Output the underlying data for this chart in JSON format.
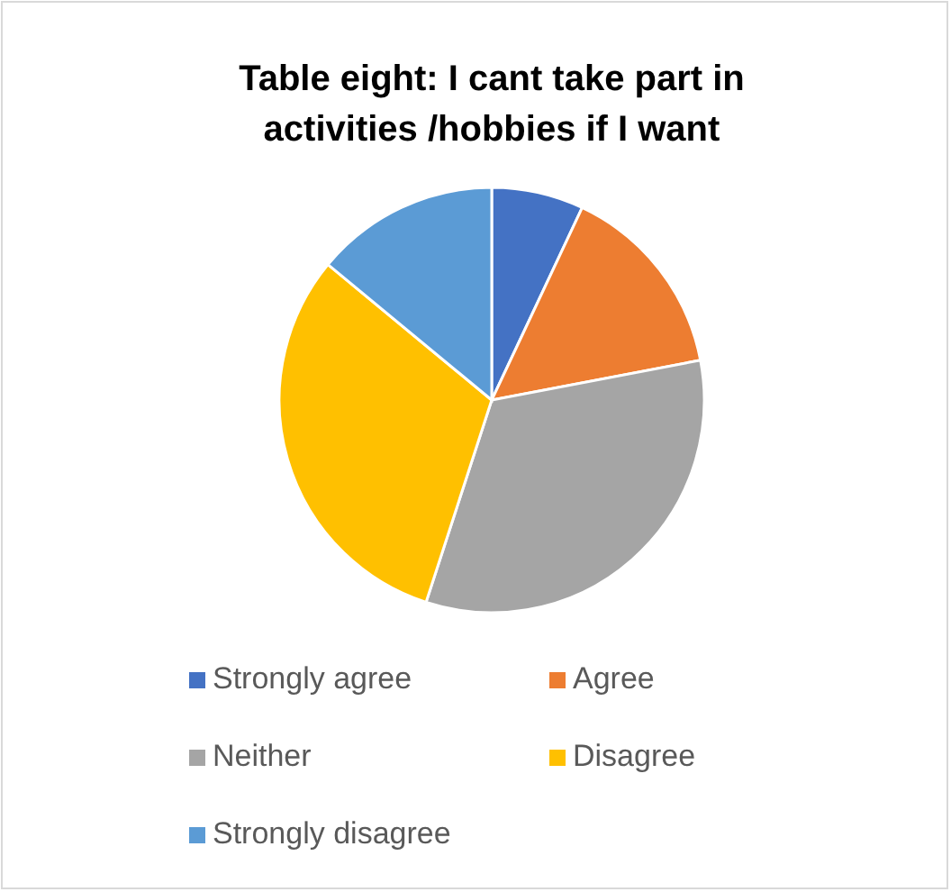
{
  "chart_data": {
    "type": "pie",
    "title": "Table eight: I cant take part in activities /hobbies if I want",
    "categories": [
      "Strongly agree",
      "Agree",
      "Neither",
      "Disagree",
      "Strongly disagree"
    ],
    "values": [
      7,
      15,
      33,
      31,
      14
    ],
    "colors": [
      "#4472c4",
      "#ed7d31",
      "#a5a5a5",
      "#ffc000",
      "#5b9bd5"
    ],
    "legend": "bottom"
  }
}
